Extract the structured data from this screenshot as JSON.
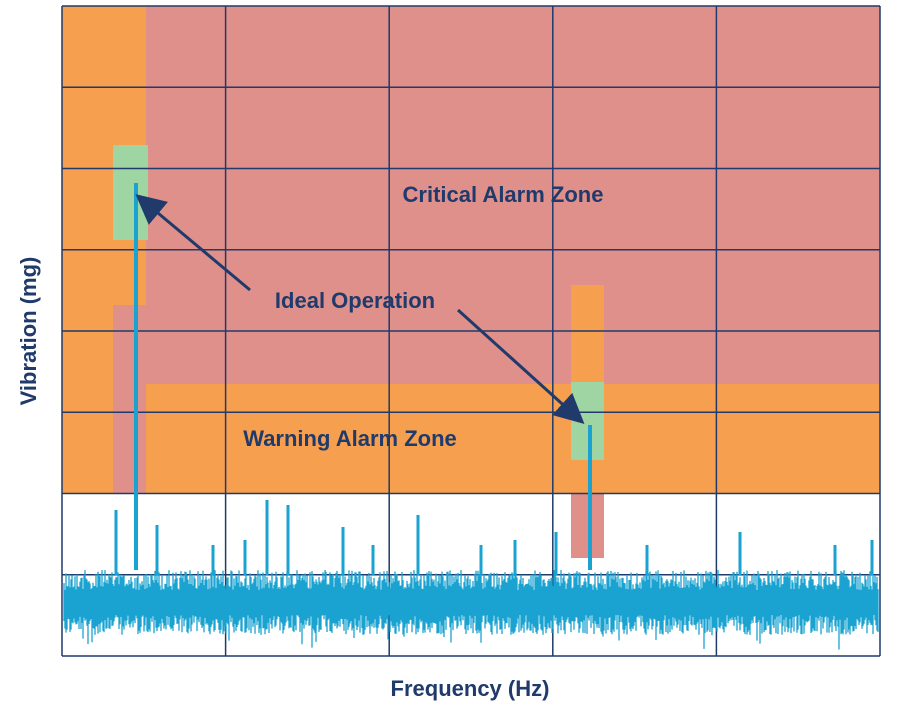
{
  "zones": {
    "critical": "Critical Alarm Zone",
    "warning": "Warning Alarm Zone"
  },
  "annotation": "Ideal Operation",
  "axes": {
    "x_label": "Frequency (Hz)",
    "y_label": "Vibration (mg)"
  }
}
